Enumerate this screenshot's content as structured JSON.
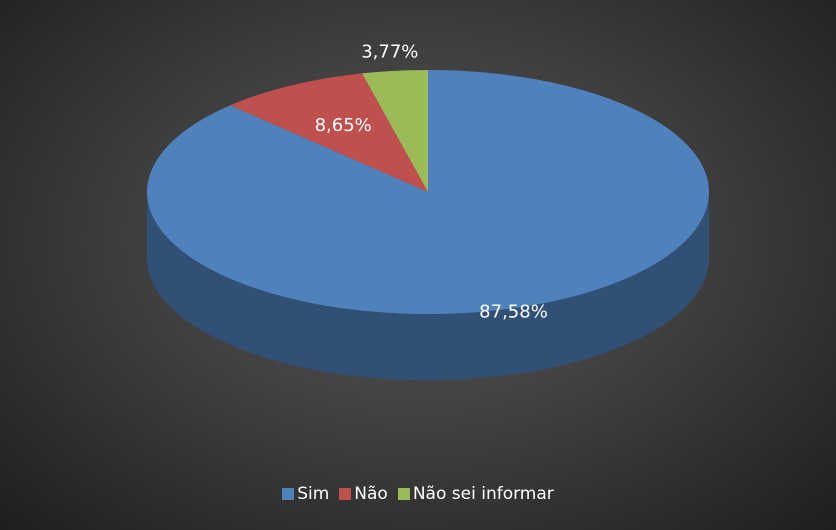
{
  "chart_data": {
    "type": "pie",
    "categories": [
      "Sim",
      "Não",
      "Não sei informar"
    ],
    "values": [
      87.58,
      8.65,
      3.77
    ],
    "value_labels": [
      "87,58%",
      "8,65%",
      "3,77%"
    ],
    "colors": [
      "#4f81bd",
      "#c0504d",
      "#9bbb59"
    ],
    "legend": "bottom"
  }
}
